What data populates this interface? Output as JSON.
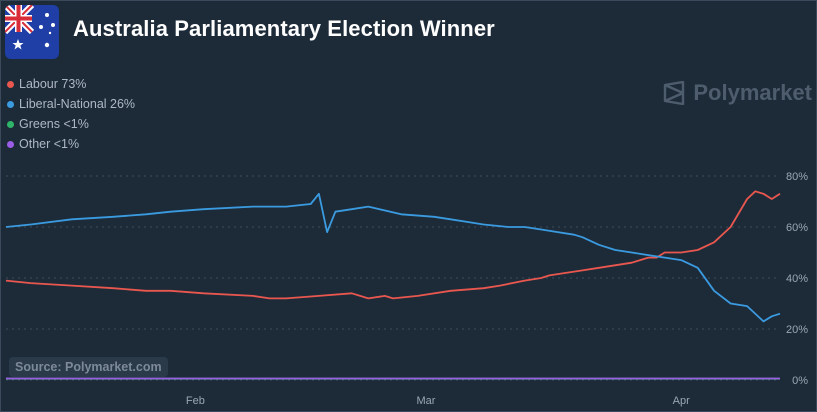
{
  "header": {
    "title": "Australia Parliamentary Election Winner",
    "flag_icon": "australia-flag-icon"
  },
  "legend": [
    {
      "label": "Labour 73%",
      "color": "#e9574f"
    },
    {
      "label": "Liberal-National 26%",
      "color": "#3b9be0"
    },
    {
      "label": "Greens <1%",
      "color": "#2fb56a"
    },
    {
      "label": "Other <1%",
      "color": "#9b5de5"
    }
  ],
  "brand": {
    "name": "Polymarket",
    "icon": "polymarket-logo-icon"
  },
  "source": "Source: Polymarket.com",
  "chart_data": {
    "type": "line",
    "x_axis": {
      "tick_labels": [
        "Feb",
        "Mar",
        "Apr"
      ]
    },
    "y_axis": {
      "ticks": [
        0,
        20,
        40,
        60,
        80
      ],
      "tick_labels": [
        "0%",
        "20%",
        "40%",
        "60%",
        "80%"
      ],
      "range": [
        0,
        80
      ]
    },
    "grid": true,
    "legend_position": "top-left",
    "x_units": "day index (0 = start of chart, day 23 = Feb 1)",
    "series": [
      {
        "name": "Labour",
        "color": "#e9574f",
        "x": [
          0,
          3,
          8,
          13,
          17,
          20,
          24,
          30,
          32,
          34,
          38,
          42,
          44,
          46,
          47,
          50,
          54,
          58,
          60,
          63,
          65,
          66,
          68,
          70,
          72,
          76,
          78,
          79,
          80,
          82,
          84,
          86,
          88,
          90,
          91,
          92,
          93,
          94
        ],
        "values": [
          39,
          38,
          37,
          36,
          35,
          35,
          34,
          33,
          32,
          32,
          33,
          34,
          32,
          33,
          32,
          33,
          35,
          36,
          37,
          39,
          40,
          41,
          42,
          43,
          44,
          46,
          48,
          48,
          50,
          50,
          51,
          54,
          60,
          71,
          74,
          73,
          71,
          73
        ]
      },
      {
        "name": "Liberal-National",
        "color": "#3b9be0",
        "x": [
          0,
          3,
          8,
          13,
          17,
          20,
          24,
          30,
          32,
          34,
          37,
          38,
          39,
          40,
          42,
          44,
          48,
          52,
          54,
          56,
          58,
          61,
          63,
          65,
          67,
          69,
          70,
          72,
          74,
          76,
          78,
          80,
          82,
          84,
          86,
          88,
          90,
          92,
          93,
          94
        ],
        "values": [
          60,
          61,
          63,
          64,
          65,
          66,
          67,
          68,
          68,
          68,
          69,
          73,
          58,
          66,
          67,
          68,
          65,
          64,
          63,
          62,
          61,
          60,
          60,
          59,
          58,
          57,
          56,
          53,
          51,
          50,
          49,
          48,
          47,
          44,
          35,
          30,
          29,
          23,
          25,
          26
        ]
      },
      {
        "name": "Greens",
        "color": "#2fb56a",
        "x": [
          0,
          94
        ],
        "values": [
          0.5,
          0.5
        ]
      },
      {
        "name": "Other",
        "color": "#9b5de5",
        "x": [
          0,
          94
        ],
        "values": [
          0.6,
          0.6
        ]
      }
    ]
  }
}
